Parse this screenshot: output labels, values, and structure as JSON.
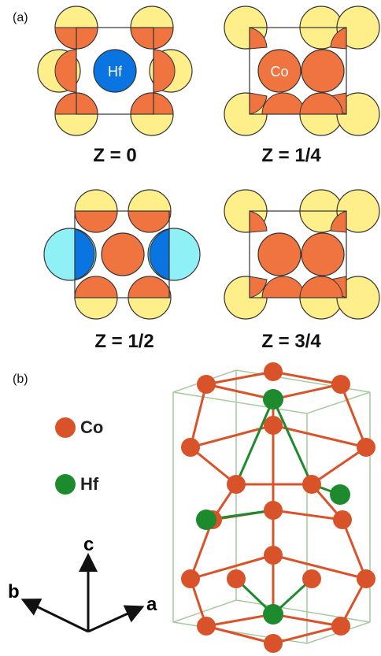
{
  "panel_a_label": "(a)",
  "panel_b_label": "(b)",
  "layers": [
    {
      "z_label": "Z = 0",
      "center_atom": "Hf"
    },
    {
      "z_label": "Z = 1/4",
      "center_atom": "Co"
    },
    {
      "z_label": "Z = 1/2"
    },
    {
      "z_label": "Z = 3/4"
    }
  ],
  "legend": [
    {
      "label": "Co",
      "color": "#d9532a"
    },
    {
      "label": "Hf",
      "color": "#1e8a2e"
    }
  ],
  "axes": {
    "a": "a",
    "b": "b",
    "c": "c"
  },
  "colors": {
    "co": "#f0743f",
    "co_light": "#ffef8a",
    "hf": "#0a74e0",
    "hf_light": "#8ff0f5",
    "bond_co": "#d9532a",
    "bond_hf": "#1e8a2e",
    "cell": "#a6c9a0"
  }
}
